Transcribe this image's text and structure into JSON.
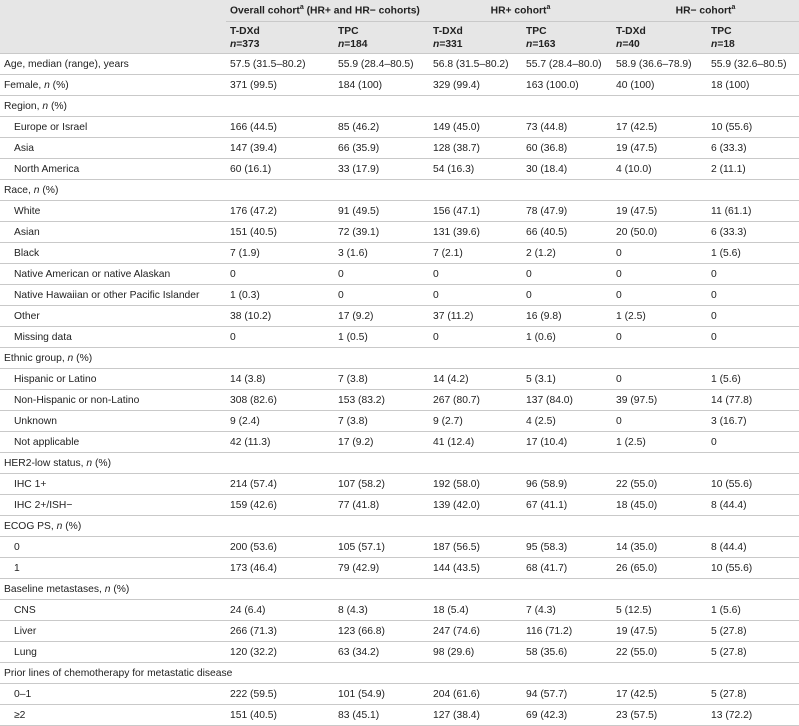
{
  "header": {
    "groups": [
      {
        "name": "Overall cohort",
        "sup": "a",
        "note": " (HR+ and HR− cohorts)"
      },
      {
        "name": "HR+ cohort",
        "sup": "a"
      },
      {
        "name": "HR− cohort",
        "sup": "a"
      }
    ],
    "columns": [
      {
        "arm": "T-DXd",
        "n": "n=373"
      },
      {
        "arm": "TPC",
        "n": "n=184"
      },
      {
        "arm": "T-DXd",
        "n": "n=331"
      },
      {
        "arm": "TPC",
        "n": "n=163"
      },
      {
        "arm": "T-DXd",
        "n": "n=40"
      },
      {
        "arm": "TPC",
        "n": "n=18"
      }
    ]
  },
  "rows": [
    {
      "label": "Age, median (range), years",
      "values": [
        "57.5 (31.5–80.2)",
        "55.9 (28.4–80.5)",
        "56.8 (31.5–80.2)",
        "55.7 (28.4–80.0)",
        "58.9 (36.6–78.9)",
        "55.9 (32.6–80.5)"
      ]
    },
    {
      "label": "Female, n (%)",
      "values": [
        "371 (99.5)",
        "184 (100)",
        "329 (99.4)",
        "163 (100.0)",
        "40 (100)",
        "18 (100)"
      ]
    },
    {
      "section": "Region, n (%)",
      "items": [
        {
          "label": "Europe or Israel",
          "values": [
            "166 (44.5)",
            "85 (46.2)",
            "149 (45.0)",
            "73 (44.8)",
            "17 (42.5)",
            "10 (55.6)"
          ]
        },
        {
          "label": "Asia",
          "values": [
            "147 (39.4)",
            "66 (35.9)",
            "128 (38.7)",
            "60 (36.8)",
            "19 (47.5)",
            "6 (33.3)"
          ]
        },
        {
          "label": "North America",
          "values": [
            "60 (16.1)",
            "33 (17.9)",
            "54 (16.3)",
            "30 (18.4)",
            "4 (10.0)",
            "2 (11.1)"
          ]
        }
      ]
    },
    {
      "section": "Race, n (%)",
      "items": [
        {
          "label": "White",
          "values": [
            "176 (47.2)",
            "91 (49.5)",
            "156 (47.1)",
            "78 (47.9)",
            "19 (47.5)",
            "11 (61.1)"
          ]
        },
        {
          "label": "Asian",
          "values": [
            "151 (40.5)",
            "72 (39.1)",
            "131 (39.6)",
            "66 (40.5)",
            "20 (50.0)",
            "6 (33.3)"
          ]
        },
        {
          "label": "Black",
          "values": [
            "7 (1.9)",
            "3 (1.6)",
            "7 (2.1)",
            "2 (1.2)",
            "0",
            "1 (5.6)"
          ]
        },
        {
          "label": "Native American or native Alaskan",
          "values": [
            "0",
            "0",
            "0",
            "0",
            "0",
            "0"
          ]
        },
        {
          "label": "Native Hawaiian or other Pacific Islander",
          "values": [
            "1 (0.3)",
            "0",
            "0",
            "0",
            "0",
            "0"
          ]
        },
        {
          "label": "Other",
          "values": [
            "38 (10.2)",
            "17 (9.2)",
            "37 (11.2)",
            "16 (9.8)",
            "1 (2.5)",
            "0"
          ]
        },
        {
          "label": "Missing data",
          "values": [
            "0",
            "1 (0.5)",
            "0",
            "1 (0.6)",
            "0",
            "0"
          ]
        }
      ]
    },
    {
      "section": "Ethnic group, n (%)",
      "items": [
        {
          "label": "Hispanic or Latino",
          "values": [
            "14 (3.8)",
            "7 (3.8)",
            "14 (4.2)",
            "5 (3.1)",
            "0",
            "1 (5.6)"
          ]
        },
        {
          "label": "Non-Hispanic or non-Latino",
          "values": [
            "308 (82.6)",
            "153 (83.2)",
            "267 (80.7)",
            "137 (84.0)",
            "39 (97.5)",
            "14 (77.8)"
          ]
        },
        {
          "label": "Unknown",
          "values": [
            "9 (2.4)",
            "7 (3.8)",
            "9 (2.7)",
            "4 (2.5)",
            "0",
            "3 (16.7)"
          ]
        },
        {
          "label": "Not applicable",
          "values": [
            "42 (11.3)",
            "17 (9.2)",
            "41 (12.4)",
            "17 (10.4)",
            "1 (2.5)",
            "0"
          ]
        }
      ]
    },
    {
      "section": "HER2-low status, n (%)",
      "items": [
        {
          "label": "IHC 1+",
          "values": [
            "214 (57.4)",
            "107 (58.2)",
            "192 (58.0)",
            "96 (58.9)",
            "22 (55.0)",
            "10 (55.6)"
          ]
        },
        {
          "label": "IHC 2+/ISH−",
          "values": [
            "159 (42.6)",
            "77 (41.8)",
            "139 (42.0)",
            "67 (41.1)",
            "18 (45.0)",
            "8 (44.4)"
          ]
        }
      ]
    },
    {
      "section": "ECOG PS, n (%)",
      "items": [
        {
          "label": "0",
          "values": [
            "200 (53.6)",
            "105 (57.1)",
            "187 (56.5)",
            "95 (58.3)",
            "14 (35.0)",
            "8 (44.4)"
          ]
        },
        {
          "label": "1",
          "values": [
            "173 (46.4)",
            "79 (42.9)",
            "144 (43.5)",
            "68 (41.7)",
            "26 (65.0)",
            "10 (55.6)"
          ]
        }
      ]
    },
    {
      "section": "Baseline metastases, n (%)",
      "items": [
        {
          "label": "CNS",
          "values": [
            "24 (6.4)",
            "8 (4.3)",
            "18 (5.4)",
            "7 (4.3)",
            "5 (12.5)",
            "1 (5.6)"
          ]
        },
        {
          "label": "Liver",
          "values": [
            "266 (71.3)",
            "123 (66.8)",
            "247 (74.6)",
            "116 (71.2)",
            "19 (47.5)",
            "5 (27.8)"
          ]
        },
        {
          "label": "Lung",
          "values": [
            "120 (32.2)",
            "63 (34.2)",
            "98 (29.6)",
            "58 (35.6)",
            "22 (55.0)",
            "5 (27.8)"
          ]
        }
      ]
    },
    {
      "section": "Prior lines of chemotherapy for metastatic disease",
      "items": [
        {
          "label": "0–1",
          "values": [
            "222 (59.5)",
            "101 (54.9)",
            "204 (61.6)",
            "94 (57.7)",
            "17 (42.5)",
            "5 (27.8)"
          ]
        },
        {
          "label": "≥2",
          "values": [
            "151 (40.5)",
            "83 (45.1)",
            "127 (38.4)",
            "69 (42.3)",
            "23 (57.5)",
            "13 (72.2)"
          ]
        }
      ]
    }
  ]
}
